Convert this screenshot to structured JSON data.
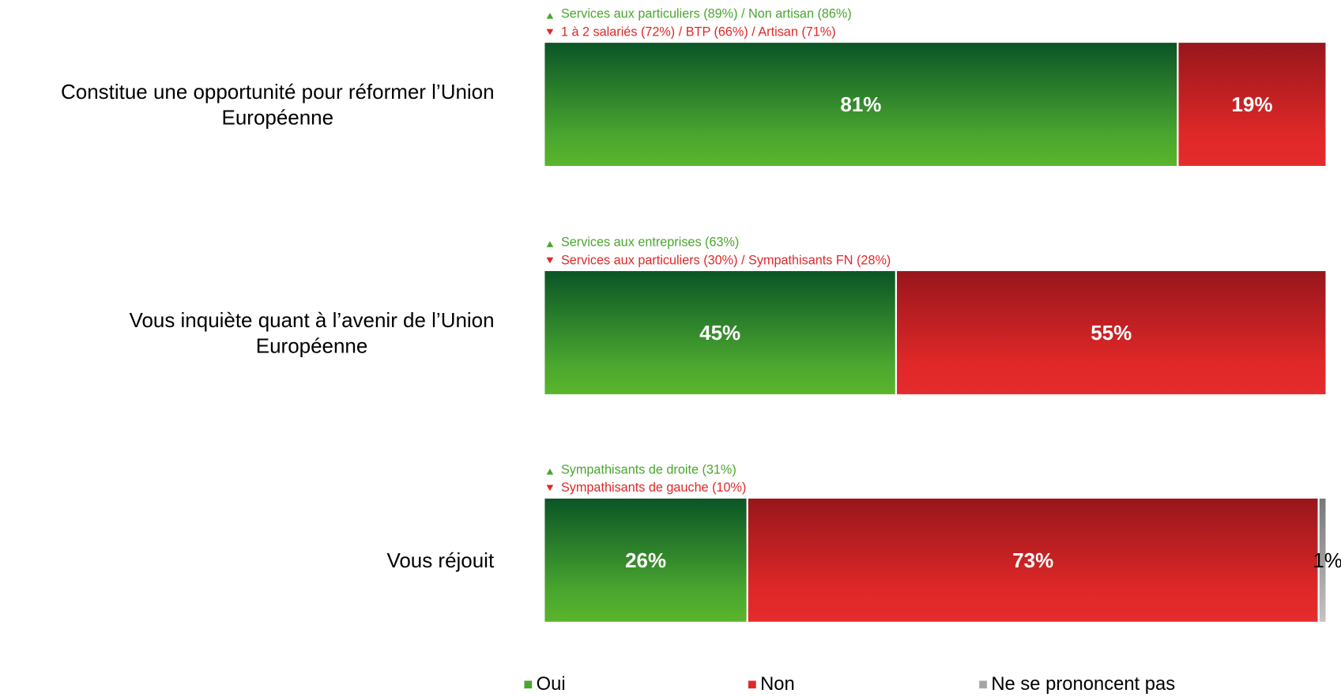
{
  "chart_data": {
    "type": "stacked_bar_horizontal",
    "categories": [
      "Constitue une opportunité pour réformer l’Union\nEuropéenne",
      "Vous inquiète quant à l’avenir de l’Union\nEuropéenne",
      "Vous réjouit"
    ],
    "series": [
      {
        "name": "Oui",
        "color": "#4aa62f",
        "values": [
          81,
          45,
          26
        ],
        "value_labels": [
          "81%",
          "45%",
          "26%"
        ]
      },
      {
        "name": "Non",
        "color": "#e02828",
        "values": [
          19,
          55,
          73
        ],
        "value_labels": [
          "19%",
          "55%",
          "73%"
        ]
      },
      {
        "name": "Ne se prononcent pas",
        "color": "#a6a6a6",
        "values": [
          null,
          null,
          1
        ],
        "value_labels": [
          null,
          null,
          "1%"
        ]
      }
    ],
    "xlim": [
      0,
      100
    ],
    "annotations": [
      {
        "up": "Services aux particuliers (89%) / Non artisan (86%)",
        "down": "1 à 2 salariés (72%) / BTP (66%) / Artisan (71%)"
      },
      {
        "up": "Services aux entreprises (63%)",
        "down": "Services aux particuliers (30%) / Sympathisants FN (28%)"
      },
      {
        "up": "Sympathisants de droite (31%)",
        "down": "Sympathisants de gauche (10%)"
      }
    ],
    "legend": "bottom"
  }
}
